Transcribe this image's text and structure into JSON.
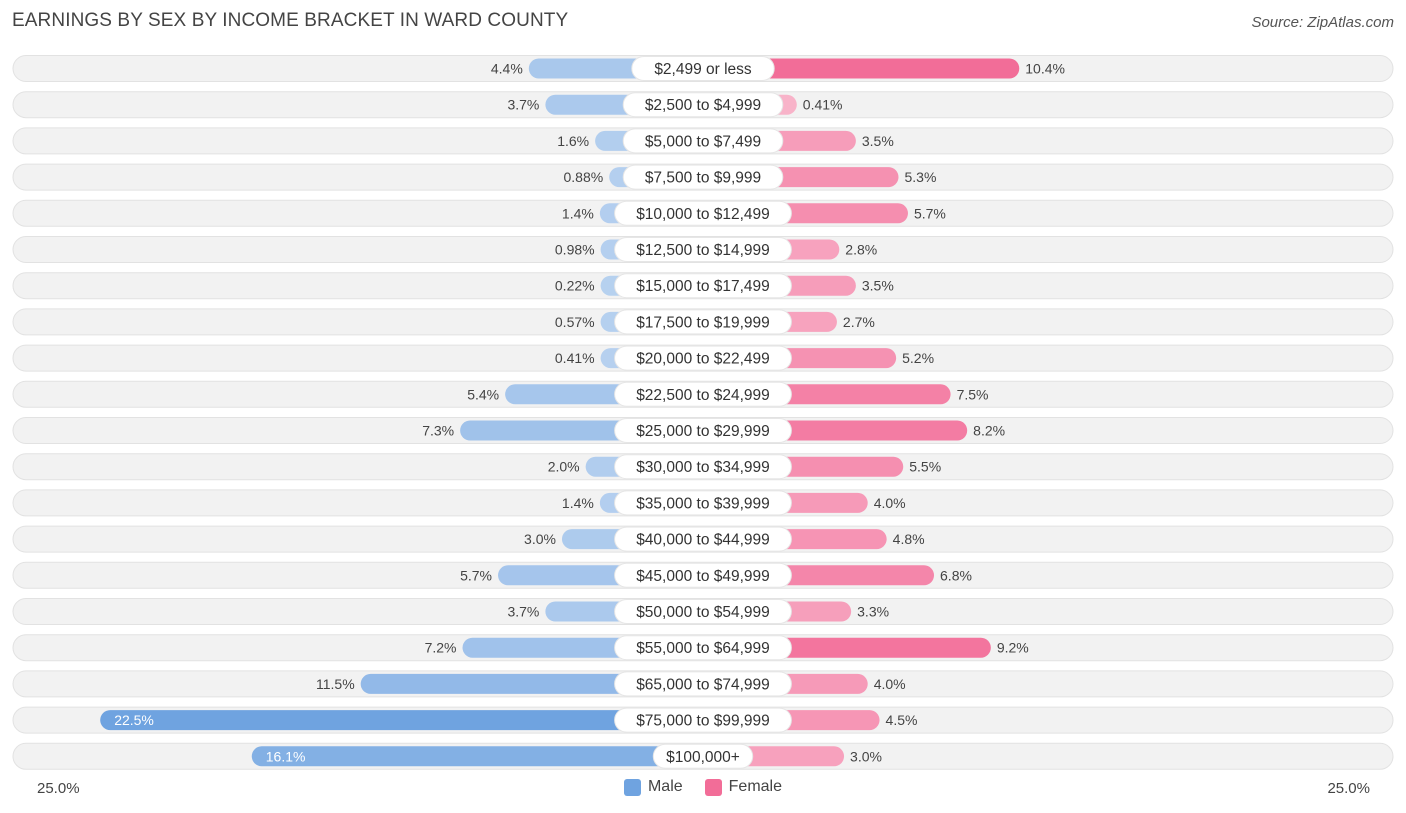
{
  "chart_data": {
    "type": "bar",
    "orientation": "horizontal-diverging",
    "title": "EARNINGS BY SEX BY INCOME BRACKET IN WARD COUNTY",
    "source": "Source: ZipAtlas.com",
    "categories": [
      "$2,499 or less",
      "$2,500 to $4,999",
      "$5,000 to $7,499",
      "$7,500 to $9,999",
      "$10,000 to $12,499",
      "$12,500 to $14,999",
      "$15,000 to $17,499",
      "$17,500 to $19,999",
      "$20,000 to $22,499",
      "$22,500 to $24,999",
      "$25,000 to $29,999",
      "$30,000 to $34,999",
      "$35,000 to $39,999",
      "$40,000 to $44,999",
      "$45,000 to $49,999",
      "$50,000 to $54,999",
      "$55,000 to $64,999",
      "$65,000 to $74,999",
      "$75,000 to $99,999",
      "$100,000+"
    ],
    "series": [
      {
        "name": "Male",
        "color": "#6fa3e0",
        "values": [
          4.4,
          3.7,
          1.6,
          0.88,
          1.4,
          0.98,
          0.22,
          0.57,
          0.41,
          5.4,
          7.3,
          2.0,
          1.4,
          3.0,
          5.7,
          3.7,
          7.2,
          11.5,
          22.5,
          16.1
        ],
        "labels": [
          "4.4%",
          "3.7%",
          "1.6%",
          "0.88%",
          "1.4%",
          "0.98%",
          "0.22%",
          "0.57%",
          "0.41%",
          "5.4%",
          "7.3%",
          "2.0%",
          "1.4%",
          "3.0%",
          "5.7%",
          "3.7%",
          "7.2%",
          "11.5%",
          "22.5%",
          "16.1%"
        ]
      },
      {
        "name": "Female",
        "color": "#f26d98",
        "values": [
          10.4,
          0.41,
          3.5,
          5.3,
          5.7,
          2.8,
          3.5,
          2.7,
          5.2,
          7.5,
          8.2,
          5.5,
          4.0,
          4.8,
          6.8,
          3.3,
          9.2,
          4.0,
          4.5,
          3.0
        ],
        "labels": [
          "10.4%",
          "0.41%",
          "3.5%",
          "5.3%",
          "5.7%",
          "2.8%",
          "3.5%",
          "2.7%",
          "5.2%",
          "7.5%",
          "8.2%",
          "5.5%",
          "4.0%",
          "4.8%",
          "6.8%",
          "3.3%",
          "9.2%",
          "4.0%",
          "4.5%",
          "3.0%"
        ]
      }
    ],
    "xlim": [
      -25,
      25
    ],
    "axis_labels": {
      "left": "25.0%",
      "right": "25.0%"
    },
    "legend_position": "bottom-center",
    "legend": [
      {
        "name": "Male",
        "color": "#6fa3e0"
      },
      {
        "name": "Female",
        "color": "#f26d98"
      }
    ]
  }
}
